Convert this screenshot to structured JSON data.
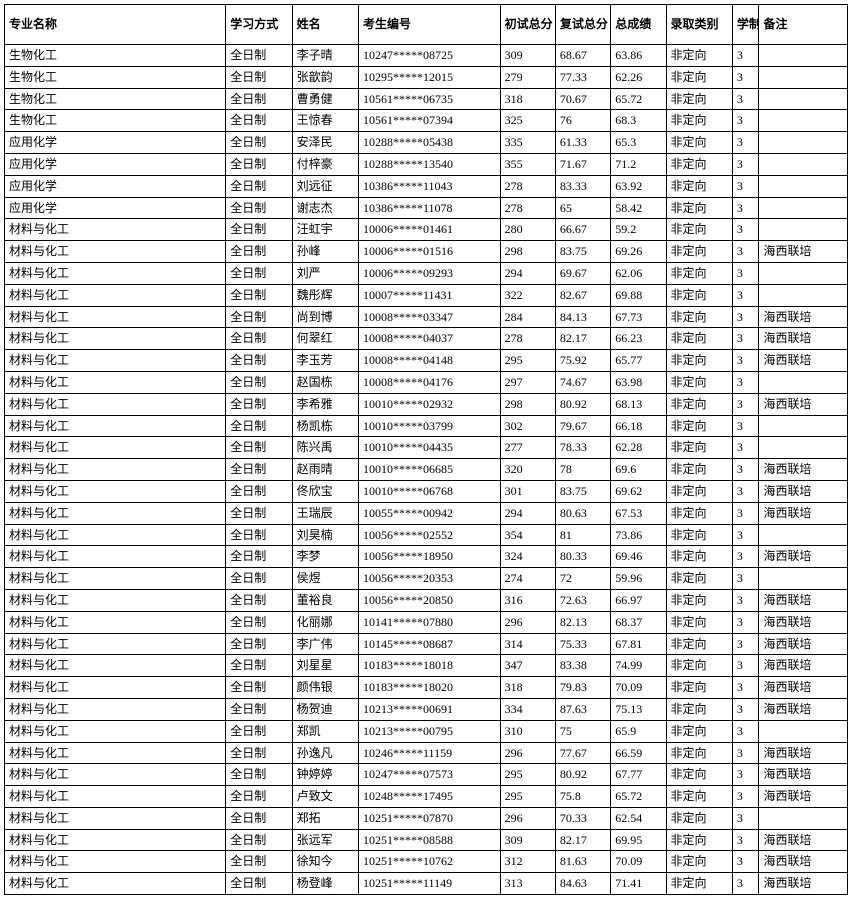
{
  "table": {
    "columns": [
      {
        "key": "major",
        "label": "专业名称",
        "class": "col-major"
      },
      {
        "key": "mode",
        "label": "学习方式",
        "class": "col-mode"
      },
      {
        "key": "name",
        "label": "姓名",
        "class": "col-name"
      },
      {
        "key": "id",
        "label": "考生编号",
        "class": "col-id"
      },
      {
        "key": "score1",
        "label": "初试总分",
        "class": "col-score1"
      },
      {
        "key": "score2",
        "label": "复试总分",
        "class": "col-score2"
      },
      {
        "key": "total",
        "label": "总成绩",
        "class": "col-total"
      },
      {
        "key": "type",
        "label": "录取类别",
        "class": "col-type"
      },
      {
        "key": "years",
        "label": "学制",
        "class": "col-years"
      },
      {
        "key": "remark",
        "label": "备注",
        "class": "col-remark"
      }
    ],
    "rows": [
      [
        "生物化工",
        "全日制",
        "李子晴",
        "10247*****08725",
        "309",
        "68.67",
        "63.86",
        "非定向",
        "3",
        ""
      ],
      [
        "生物化工",
        "全日制",
        "张歆韵",
        "10295*****12015",
        "279",
        "77.33",
        "62.26",
        "非定向",
        "3",
        ""
      ],
      [
        "生物化工",
        "全日制",
        "曹勇健",
        "10561*****06735",
        "318",
        "70.67",
        "65.72",
        "非定向",
        "3",
        ""
      ],
      [
        "生物化工",
        "全日制",
        "王惊春",
        "10561*****07394",
        "325",
        "76",
        "68.3",
        "非定向",
        "3",
        ""
      ],
      [
        "应用化学",
        "全日制",
        "安泽民",
        "10288*****05438",
        "335",
        "61.33",
        "65.3",
        "非定向",
        "3",
        ""
      ],
      [
        "应用化学",
        "全日制",
        "付梓豪",
        "10288*****13540",
        "355",
        "71.67",
        "71.2",
        "非定向",
        "3",
        ""
      ],
      [
        "应用化学",
        "全日制",
        "刘远征",
        "10386*****11043",
        "278",
        "83.33",
        "63.92",
        "非定向",
        "3",
        ""
      ],
      [
        "应用化学",
        "全日制",
        "谢志杰",
        "10386*****11078",
        "278",
        "65",
        "58.42",
        "非定向",
        "3",
        ""
      ],
      [
        "材料与化工",
        "全日制",
        "汪虹宇",
        "10006*****01461",
        "280",
        "66.67",
        "59.2",
        "非定向",
        "3",
        ""
      ],
      [
        "材料与化工",
        "全日制",
        "孙峰",
        "10006*****01516",
        "298",
        "83.75",
        "69.26",
        "非定向",
        "3",
        "海西联培"
      ],
      [
        "材料与化工",
        "全日制",
        "刘严",
        "10006*****09293",
        "294",
        "69.67",
        "62.06",
        "非定向",
        "3",
        ""
      ],
      [
        "材料与化工",
        "全日制",
        "魏彤辉",
        "10007*****11431",
        "322",
        "82.67",
        "69.88",
        "非定向",
        "3",
        ""
      ],
      [
        "材料与化工",
        "全日制",
        "尚到博",
        "10008*****03347",
        "284",
        "84.13",
        "67.73",
        "非定向",
        "3",
        "海西联培"
      ],
      [
        "材料与化工",
        "全日制",
        "何翠红",
        "10008*****04037",
        "278",
        "82.17",
        "66.23",
        "非定向",
        "3",
        "海西联培"
      ],
      [
        "材料与化工",
        "全日制",
        "李玉芳",
        "10008*****04148",
        "295",
        "75.92",
        "65.77",
        "非定向",
        "3",
        "海西联培"
      ],
      [
        "材料与化工",
        "全日制",
        "赵国栋",
        "10008*****04176",
        "297",
        "74.67",
        "63.98",
        "非定向",
        "3",
        ""
      ],
      [
        "材料与化工",
        "全日制",
        "李希雅",
        "10010*****02932",
        "298",
        "80.92",
        "68.13",
        "非定向",
        "3",
        "海西联培"
      ],
      [
        "材料与化工",
        "全日制",
        "杨凯栋",
        "10010*****03799",
        "302",
        "79.67",
        "66.18",
        "非定向",
        "3",
        ""
      ],
      [
        "材料与化工",
        "全日制",
        "陈兴禹",
        "10010*****04435",
        "277",
        "78.33",
        "62.28",
        "非定向",
        "3",
        ""
      ],
      [
        "材料与化工",
        "全日制",
        "赵雨晴",
        "10010*****06685",
        "320",
        "78",
        "69.6",
        "非定向",
        "3",
        "海西联培"
      ],
      [
        "材料与化工",
        "全日制",
        "佟欣宝",
        "10010*****06768",
        "301",
        "83.75",
        "69.62",
        "非定向",
        "3",
        "海西联培"
      ],
      [
        "材料与化工",
        "全日制",
        "王瑞辰",
        "10055*****00942",
        "294",
        "80.63",
        "67.53",
        "非定向",
        "3",
        "海西联培"
      ],
      [
        "材料与化工",
        "全日制",
        "刘昊楠",
        "10056*****02552",
        "354",
        "81",
        "73.86",
        "非定向",
        "3",
        ""
      ],
      [
        "材料与化工",
        "全日制",
        "李梦",
        "10056*****18950",
        "324",
        "80.33",
        "69.46",
        "非定向",
        "3",
        "海西联培"
      ],
      [
        "材料与化工",
        "全日制",
        "侯煜",
        "10056*****20353",
        "274",
        "72",
        "59.96",
        "非定向",
        "3",
        ""
      ],
      [
        "材料与化工",
        "全日制",
        "董裕良",
        "10056*****20850",
        "316",
        "72.63",
        "66.97",
        "非定向",
        "3",
        "海西联培"
      ],
      [
        "材料与化工",
        "全日制",
        "化丽娜",
        "10141*****07880",
        "296",
        "82.13",
        "68.37",
        "非定向",
        "3",
        "海西联培"
      ],
      [
        "材料与化工",
        "全日制",
        "李广伟",
        "10145*****08687",
        "314",
        "75.33",
        "67.81",
        "非定向",
        "3",
        "海西联培"
      ],
      [
        "材料与化工",
        "全日制",
        "刘星星",
        "10183*****18018",
        "347",
        "83.38",
        "74.99",
        "非定向",
        "3",
        "海西联培"
      ],
      [
        "材料与化工",
        "全日制",
        "颜伟银",
        "10183*****18020",
        "318",
        "79.83",
        "70.09",
        "非定向",
        "3",
        "海西联培"
      ],
      [
        "材料与化工",
        "全日制",
        "杨贺迪",
        "10213*****00691",
        "334",
        "87.63",
        "75.13",
        "非定向",
        "3",
        "海西联培"
      ],
      [
        "材料与化工",
        "全日制",
        "郑凯",
        "10213*****00795",
        "310",
        "75",
        "65.9",
        "非定向",
        "3",
        ""
      ],
      [
        "材料与化工",
        "全日制",
        "孙逸凡",
        "10246*****11159",
        "296",
        "77.67",
        "66.59",
        "非定向",
        "3",
        "海西联培"
      ],
      [
        "材料与化工",
        "全日制",
        "钟婷婷",
        "10247*****07573",
        "295",
        "80.92",
        "67.77",
        "非定向",
        "3",
        "海西联培"
      ],
      [
        "材料与化工",
        "全日制",
        "卢致文",
        "10248*****17495",
        "295",
        "75.8",
        "65.72",
        "非定向",
        "3",
        "海西联培"
      ],
      [
        "材料与化工",
        "全日制",
        "郑拓",
        "10251*****07870",
        "296",
        "70.33",
        "62.54",
        "非定向",
        "3",
        ""
      ],
      [
        "材料与化工",
        "全日制",
        "张远军",
        "10251*****08588",
        "309",
        "82.17",
        "69.95",
        "非定向",
        "3",
        "海西联培"
      ],
      [
        "材料与化工",
        "全日制",
        "徐知今",
        "10251*****10762",
        "312",
        "81.63",
        "70.09",
        "非定向",
        "3",
        "海西联培"
      ],
      [
        "材料与化工",
        "全日制",
        "杨登峰",
        "10251*****11149",
        "313",
        "84.63",
        "71.41",
        "非定向",
        "3",
        "海西联培"
      ]
    ],
    "header_bg": "#ffffff",
    "border_color": "#000000",
    "font_size": 12
  },
  "watermark": {
    "text1": "",
    "text2": ""
  }
}
